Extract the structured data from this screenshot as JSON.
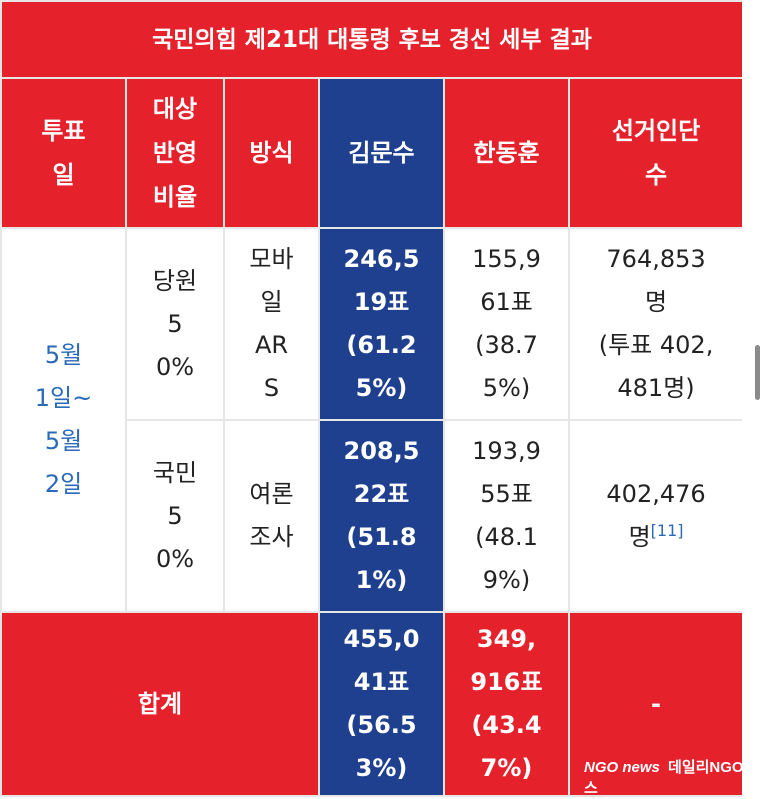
{
  "title": "국민의힘 제21대 대통령 후보 경선 세부 결과",
  "headers": {
    "vote_day": "투표\n일",
    "ratio": "대상\n반영\n비율",
    "method": "방식",
    "kim": "김문수",
    "han": "한동훈",
    "voters": "선거인단\n수"
  },
  "vote_date": "5월\n1일~\n5월\n2일",
  "rows": [
    {
      "ratio": "당원\n5\n0%",
      "method": "모바\n일\nAR\nS",
      "kim": "246,5\n19표\n(61.2\n5%)",
      "han": "155,9\n61표\n(38.7\n5%)",
      "voters": "764,853\n명\n(투표 402,\n481명)"
    },
    {
      "ratio": "국민\n5\n0%",
      "method": "여론\n조사",
      "kim": "208,5\n22표\n(51.8\n1%)",
      "han": "193,9\n55표\n(48.1\n9%)",
      "voters": "402,476\n명",
      "voters_note": "[11]"
    }
  ],
  "total": {
    "label": "합계",
    "kim": "455,0\n41표\n(56.5\n3%)",
    "han": "349,\n916표\n(43.4\n7%)",
    "voters": "-"
  },
  "watermark": {
    "logo": "NGO news",
    "text": "데일리NGO뉴스"
  },
  "colors": {
    "header_red": "#e5212c",
    "kim_blue": "#1f3f8f",
    "date_blue": "#2a6ab8"
  }
}
